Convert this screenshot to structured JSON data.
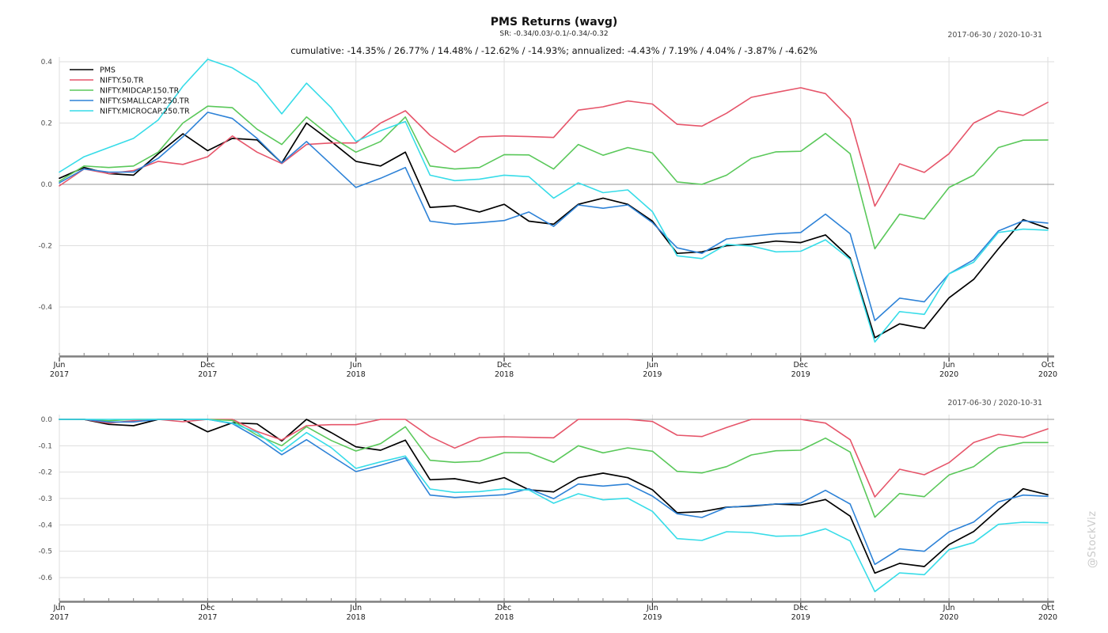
{
  "header": {
    "title": "PMS Returns (wavg)",
    "subtitle": "SR: -0.34/0.03/-0.1/-0.34/-0.32",
    "summary": "cumulative: -14.35% / 26.77% / 14.48% / -12.62% / -14.93%; annualized: -4.43% / 7.19% / 4.04% / -3.87% / -4.62%"
  },
  "watermark": "@StockViz",
  "colors": {
    "pms": "#000000",
    "nifty50": "#E6556A",
    "midcap": "#5AC85A",
    "smallcap": "#2D82D7",
    "microcap": "#37DCE8",
    "gridline": "#dedede",
    "zeroline": "#969696",
    "axis_bar": "#7f7f7f",
    "tick": "#4d4d4d",
    "tick_label": "#4d4d4d",
    "watermark": "#c9c9c9"
  },
  "chart_data": [
    {
      "type": "line",
      "title": "cumulative returns",
      "annotation": "2017-06-30 / 2020-10-31",
      "legend_position": "top-left",
      "grid": true,
      "ylim": [
        -0.555,
        0.415
      ],
      "y_ticks": [
        {
          "value": 0.4,
          "label": "0.4"
        },
        {
          "value": 0.2,
          "label": "0.2"
        },
        {
          "value": 0.0,
          "label": "0.0"
        },
        {
          "value": -0.2,
          "label": "-0.2"
        },
        {
          "value": -0.4,
          "label": "-0.4"
        }
      ],
      "x_ticks": [
        {
          "index": 0,
          "line1": "Jun",
          "line2": "2017"
        },
        {
          "index": 6,
          "line1": "Dec",
          "line2": "2017"
        },
        {
          "index": 12,
          "line1": "Jun",
          "line2": "2018"
        },
        {
          "index": 18,
          "line1": "Dec",
          "line2": "2018"
        },
        {
          "index": 24,
          "line1": "Jun",
          "line2": "2019"
        },
        {
          "index": 30,
          "line1": "Dec",
          "line2": "2019"
        },
        {
          "index": 36,
          "line1": "Jun",
          "line2": "2020"
        },
        {
          "index": 40,
          "line1": "Oct",
          "line2": "2020"
        }
      ],
      "n_points": 41,
      "series": [
        {
          "name": "PMS",
          "color_key": "pms",
          "values": [
            0.02,
            0.055,
            0.035,
            0.03,
            0.1,
            0.165,
            0.11,
            0.15,
            0.145,
            0.07,
            0.2,
            0.14,
            0.075,
            0.06,
            0.105,
            -0.075,
            -0.07,
            -0.09,
            -0.065,
            -0.12,
            -0.13,
            -0.065,
            -0.045,
            -0.065,
            -0.12,
            -0.225,
            -0.22,
            -0.2,
            -0.195,
            -0.185,
            -0.19,
            -0.165,
            -0.24,
            -0.5,
            -0.455,
            -0.47,
            -0.37,
            -0.31,
            -0.21,
            -0.115,
            -0.1435
          ]
        },
        {
          "name": "NIFTY.50.TR",
          "color_key": "nifty50",
          "values": [
            -0.005,
            0.05,
            0.035,
            0.045,
            0.075,
            0.065,
            0.09,
            0.158,
            0.105,
            0.068,
            0.13,
            0.135,
            0.135,
            0.2,
            0.24,
            0.16,
            0.105,
            0.155,
            0.158,
            0.156,
            0.153,
            0.242,
            0.253,
            0.272,
            0.262,
            0.196,
            0.19,
            0.232,
            0.284,
            0.3,
            0.315,
            0.296,
            0.214,
            -0.071,
            0.067,
            0.039,
            0.1,
            0.2,
            0.24,
            0.225,
            0.2677
          ]
        },
        {
          "name": "NIFTY.MIDCAP.150.TR",
          "color_key": "midcap",
          "values": [
            0.01,
            0.06,
            0.055,
            0.06,
            0.105,
            0.2,
            0.255,
            0.25,
            0.18,
            0.13,
            0.22,
            0.155,
            0.105,
            0.14,
            0.22,
            0.06,
            0.05,
            0.055,
            0.097,
            0.096,
            0.05,
            0.13,
            0.095,
            0.12,
            0.103,
            0.008,
            0.0,
            0.03,
            0.085,
            0.106,
            0.108,
            0.166,
            0.1,
            -0.21,
            -0.097,
            -0.113,
            -0.01,
            0.03,
            0.12,
            0.144,
            0.1448
          ]
        },
        {
          "name": "NIFTY.SMALLCAP.250.TR",
          "color_key": "smallcap",
          "values": [
            0.005,
            0.05,
            0.04,
            0.04,
            0.085,
            0.155,
            0.235,
            0.215,
            0.15,
            0.07,
            0.14,
            0.065,
            -0.01,
            0.02,
            0.055,
            -0.12,
            -0.13,
            -0.125,
            -0.118,
            -0.09,
            -0.137,
            -0.067,
            -0.078,
            -0.067,
            -0.125,
            -0.207,
            -0.225,
            -0.178,
            -0.169,
            -0.161,
            -0.157,
            -0.097,
            -0.161,
            -0.444,
            -0.371,
            -0.383,
            -0.292,
            -0.246,
            -0.152,
            -0.119,
            -0.1262
          ]
        },
        {
          "name": "NIFTY.MICROCAP.250.TR",
          "color_key": "microcap",
          "values": [
            0.04,
            0.09,
            0.12,
            0.15,
            0.21,
            0.32,
            0.408,
            0.38,
            0.33,
            0.23,
            0.33,
            0.25,
            0.14,
            0.175,
            0.205,
            0.03,
            0.012,
            0.017,
            0.03,
            0.025,
            -0.045,
            0.005,
            -0.027,
            -0.018,
            -0.089,
            -0.233,
            -0.242,
            -0.196,
            -0.201,
            -0.22,
            -0.218,
            -0.181,
            -0.245,
            -0.514,
            -0.415,
            -0.424,
            -0.292,
            -0.254,
            -0.157,
            -0.146,
            -0.1493
          ]
        }
      ]
    },
    {
      "type": "line",
      "title": "drawdowns",
      "annotation": "2017-06-30 / 2020-10-31",
      "legend_position": "none",
      "grid": true,
      "ylim": [
        -0.68,
        0.018
      ],
      "y_ticks": [
        {
          "value": 0.0,
          "label": "0.0"
        },
        {
          "value": -0.1,
          "label": "-0.1"
        },
        {
          "value": -0.2,
          "label": "-0.2"
        },
        {
          "value": -0.3,
          "label": "-0.3"
        },
        {
          "value": -0.4,
          "label": "-0.4"
        },
        {
          "value": -0.5,
          "label": "-0.5"
        },
        {
          "value": -0.6,
          "label": "-0.6"
        }
      ],
      "x_ticks": [
        {
          "index": 0,
          "line1": "Jun",
          "line2": "2017"
        },
        {
          "index": 6,
          "line1": "Dec",
          "line2": "2017"
        },
        {
          "index": 12,
          "line1": "Jun",
          "line2": "2018"
        },
        {
          "index": 18,
          "line1": "Dec",
          "line2": "2018"
        },
        {
          "index": 24,
          "line1": "Jun",
          "line2": "2019"
        },
        {
          "index": 30,
          "line1": "Dec",
          "line2": "2019"
        },
        {
          "index": 36,
          "line1": "Jun",
          "line2": "2020"
        },
        {
          "index": 40,
          "line1": "Oct",
          "line2": "2020"
        }
      ],
      "n_points": 41,
      "series": [
        {
          "name": "PMS",
          "color_key": "pms",
          "values": [
            0,
            0,
            -0.019,
            -0.024,
            0,
            0,
            -0.047,
            -0.013,
            -0.017,
            -0.082,
            0,
            -0.05,
            -0.104,
            -0.117,
            -0.079,
            -0.229,
            -0.225,
            -0.242,
            -0.221,
            -0.267,
            -0.275,
            -0.221,
            -0.204,
            -0.221,
            -0.267,
            -0.354,
            -0.35,
            -0.333,
            -0.329,
            -0.321,
            -0.325,
            -0.304,
            -0.367,
            -0.583,
            -0.546,
            -0.558,
            -0.475,
            -0.425,
            -0.342,
            -0.263,
            -0.286
          ]
        },
        {
          "name": "NIFTY.50.TR",
          "color_key": "nifty50",
          "values": [
            0,
            0,
            -0.014,
            -0.005,
            0,
            -0.009,
            0,
            0,
            -0.046,
            -0.078,
            -0.024,
            -0.02,
            -0.02,
            0,
            0,
            -0.065,
            -0.109,
            -0.069,
            -0.066,
            -0.068,
            -0.07,
            0,
            0,
            0,
            -0.008,
            -0.06,
            -0.065,
            -0.031,
            0,
            0,
            0,
            -0.014,
            -0.077,
            -0.294,
            -0.189,
            -0.21,
            -0.164,
            -0.088,
            -0.057,
            -0.068,
            -0.036
          ]
        },
        {
          "name": "NIFTY.MIDCAP.150.TR",
          "color_key": "midcap",
          "values": [
            0,
            0,
            -0.005,
            0,
            0,
            0,
            0,
            -0.004,
            -0.06,
            -0.1,
            -0.028,
            -0.08,
            -0.12,
            -0.092,
            -0.028,
            -0.155,
            -0.163,
            -0.159,
            -0.126,
            -0.127,
            -0.163,
            -0.1,
            -0.127,
            -0.108,
            -0.121,
            -0.197,
            -0.203,
            -0.179,
            -0.135,
            -0.119,
            -0.117,
            -0.071,
            -0.124,
            -0.371,
            -0.281,
            -0.293,
            -0.211,
            -0.179,
            -0.108,
            -0.088,
            -0.088
          ]
        },
        {
          "name": "NIFTY.SMALLCAP.250.TR",
          "color_key": "smallcap",
          "values": [
            0,
            0,
            -0.01,
            -0.01,
            0,
            0,
            0,
            -0.016,
            -0.069,
            -0.134,
            -0.077,
            -0.138,
            -0.198,
            -0.174,
            -0.146,
            -0.287,
            -0.296,
            -0.291,
            -0.286,
            -0.263,
            -0.301,
            -0.245,
            -0.253,
            -0.245,
            -0.291,
            -0.358,
            -0.372,
            -0.334,
            -0.327,
            -0.321,
            -0.317,
            -0.269,
            -0.321,
            -0.55,
            -0.491,
            -0.5,
            -0.427,
            -0.389,
            -0.313,
            -0.287,
            -0.292
          ]
        },
        {
          "name": "NIFTY.MICROCAP.250.TR",
          "color_key": "microcap",
          "values": [
            0,
            0,
            0,
            0,
            0,
            0,
            0,
            -0.014,
            -0.05,
            -0.121,
            -0.05,
            -0.107,
            -0.186,
            -0.161,
            -0.139,
            -0.264,
            -0.277,
            -0.274,
            -0.264,
            -0.268,
            -0.318,
            -0.282,
            -0.305,
            -0.299,
            -0.349,
            -0.452,
            -0.459,
            -0.426,
            -0.429,
            -0.443,
            -0.441,
            -0.415,
            -0.461,
            -0.653,
            -0.582,
            -0.589,
            -0.494,
            -0.467,
            -0.398,
            -0.39,
            -0.392
          ]
        }
      ]
    }
  ]
}
